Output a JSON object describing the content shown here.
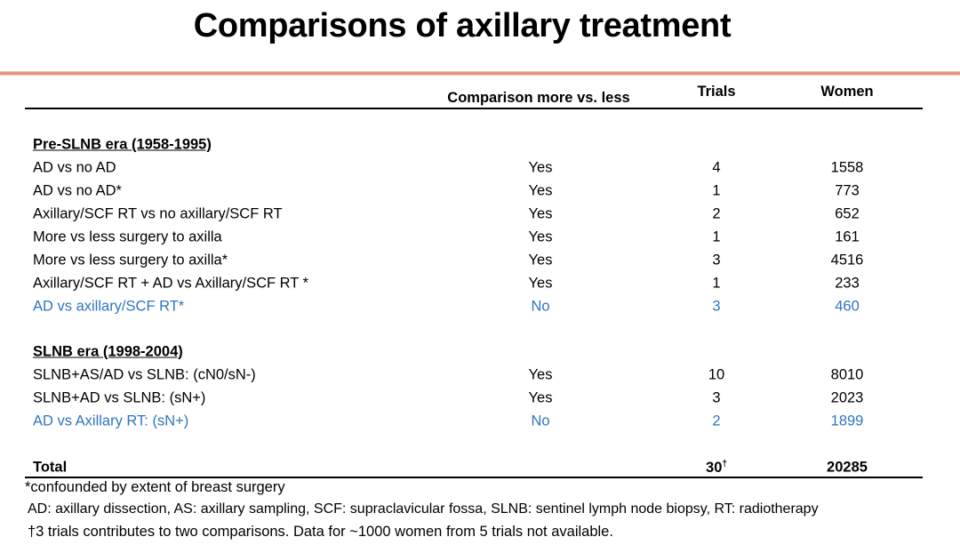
{
  "title": "Comparisons of axillary treatment",
  "colors": {
    "highlight": "#2e75c0",
    "divider": "#d9826a"
  },
  "columns": {
    "comparison": "Comparison more vs. less",
    "trials": "Trials",
    "women": "Women"
  },
  "sections": [
    {
      "heading": "Pre-SLNB era (1958-1995)",
      "rows": [
        {
          "label": "AD vs no AD",
          "comparison": "Yes",
          "trials": "4",
          "women": "1558",
          "highlight": false
        },
        {
          "label": "AD vs no AD*",
          "comparison": "Yes",
          "trials": "1",
          "women": "773",
          "highlight": false
        },
        {
          "label": "Axillary/SCF RT vs no axillary/SCF RT",
          "comparison": "Yes",
          "trials": "2",
          "women": "652",
          "highlight": false
        },
        {
          "label": "More vs less surgery to axilla",
          "comparison": "Yes",
          "trials": "1",
          "women": "161",
          "highlight": false
        },
        {
          "label": "More vs less surgery to axilla*",
          "comparison": "Yes",
          "trials": "3",
          "women": "4516",
          "highlight": false
        },
        {
          "label": "Axillary/SCF RT + AD vs Axillary/SCF RT *",
          "comparison": "Yes",
          "trials": "1",
          "women": "233",
          "highlight": false
        },
        {
          "label": "AD vs axillary/SCF RT*",
          "comparison": "No",
          "trials": "3",
          "women": "460",
          "highlight": true
        }
      ]
    },
    {
      "heading": "SLNB era (1998-2004)",
      "rows": [
        {
          "label": "SLNB+AS/AD vs SLNB: (cN0/sN-)",
          "comparison": "Yes",
          "trials": "10",
          "women": "8010",
          "highlight": false
        },
        {
          "label": "SLNB+AD vs SLNB: (sN+)",
          "comparison": "Yes",
          "trials": "3",
          "women": "2023",
          "highlight": false
        },
        {
          "label": "AD vs Axillary RT: (sN+)",
          "comparison": "No",
          "trials": "2",
          "women": "1899",
          "highlight": true
        }
      ]
    }
  ],
  "total": {
    "label": "Total",
    "trials": "30",
    "trials_mark": "†",
    "women": "20285"
  },
  "footnotes": [
    "*confounded by extent of breast surgery",
    "AD: axillary dissection, AS: axillary sampling, SCF: supraclavicular fossa, SLNB: sentinel lymph node biopsy, RT:  radiotherapy",
    "†3 trials contributes to two comparisons. Data for ~1000 women from 5 trials not available."
  ]
}
